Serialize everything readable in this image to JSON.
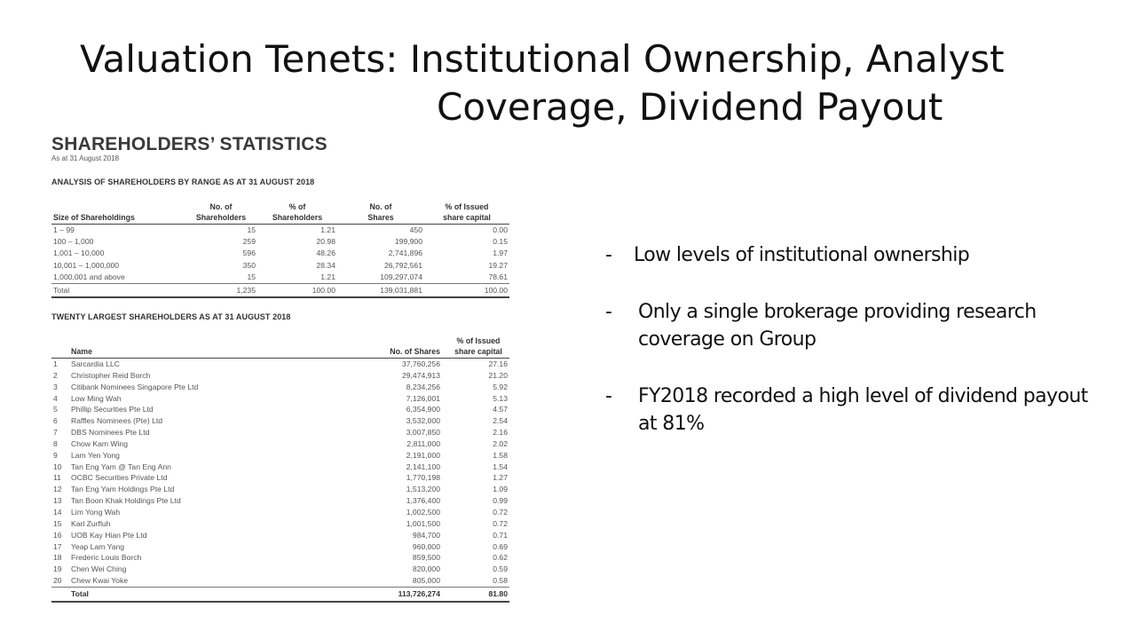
{
  "slide": {
    "title_line1": "Valuation Tenets: Institutional Ownership, Analyst",
    "title_line2": "Coverage, Dividend Payout",
    "bullets": [
      {
        "dash": "-",
        "text": "Low levels of institutional ownership"
      },
      {
        "dash": "-",
        "text": "Only a single brokerage providing research coverage on Group"
      },
      {
        "dash": "-",
        "text": "FY2018 recorded a high level of dividend payout at 81%"
      }
    ]
  },
  "doc": {
    "title": "SHAREHOLDERS’ STATISTICS",
    "subtitle": "As at 31 August 2018",
    "range_section_title": "ANALYSIS OF SHAREHOLDERS BY RANGE AS AT 31 AUGUST 2018",
    "range_headers": {
      "size": "Size of Shareholdings",
      "holders": "No. of Shareholders",
      "pct_holders": "% of Shareholders",
      "shares": "No. of Shares",
      "pct_capital": "% of Issued share capital"
    },
    "range_rows": [
      {
        "size": "1 – 99",
        "holders": "15",
        "pct_holders": "1.21",
        "shares": "450",
        "pct_capital": "0.00"
      },
      {
        "size": "100 – 1,000",
        "holders": "259",
        "pct_holders": "20.98",
        "shares": "199,900",
        "pct_capital": "0.15"
      },
      {
        "size": "1,001 – 10,000",
        "holders": "596",
        "pct_holders": "48.26",
        "shares": "2,741,896",
        "pct_capital": "1.97"
      },
      {
        "size": "10,001 – 1,000,000",
        "holders": "350",
        "pct_holders": "28.34",
        "shares": "26,792,561",
        "pct_capital": "19.27"
      },
      {
        "size": "1,000,001 and above",
        "holders": "15",
        "pct_holders": "1.21",
        "shares": "109,297,074",
        "pct_capital": "78.61"
      }
    ],
    "range_total": {
      "size": "Total",
      "holders": "1,235",
      "pct_holders": "100.00",
      "shares": "139,031,881",
      "pct_capital": "100.00"
    },
    "top20_section_title": "TWENTY LARGEST SHAREHOLDERS AS AT 31 AUGUST 2018",
    "top20_headers": {
      "name": "Name",
      "shares": "No. of Shares",
      "pct_capital": "% of Issued share capital"
    },
    "top20_rows": [
      {
        "no": "1",
        "name": "Sarcardia LLC",
        "shares": "37,760,256",
        "pct": "27.16"
      },
      {
        "no": "2",
        "name": "Christopher Reid Borch",
        "shares": "29,474,913",
        "pct": "21.20"
      },
      {
        "no": "3",
        "name": "Citibank Nominees Singapore Pte Ltd",
        "shares": "8,234,256",
        "pct": "5.92"
      },
      {
        "no": "4",
        "name": "Low Ming Wah",
        "shares": "7,126,001",
        "pct": "5.13"
      },
      {
        "no": "5",
        "name": "Phillip Securities Pte Ltd",
        "shares": "6,354,900",
        "pct": "4.57"
      },
      {
        "no": "6",
        "name": "Raffles Nominees (Pte) Ltd",
        "shares": "3,532,000",
        "pct": "2.54"
      },
      {
        "no": "7",
        "name": "DBS Nominees Pte Ltd",
        "shares": "3,007,850",
        "pct": "2.16"
      },
      {
        "no": "8",
        "name": "Chow Kam Wing",
        "shares": "2,811,000",
        "pct": "2.02"
      },
      {
        "no": "9",
        "name": "Lam Yen Yong",
        "shares": "2,191,000",
        "pct": "1.58"
      },
      {
        "no": "10",
        "name": "Tan Eng Yam @ Tan Eng Ann",
        "shares": "2,141,100",
        "pct": "1.54"
      },
      {
        "no": "11",
        "name": "OCBC Securities Private Ltd",
        "shares": "1,770,198",
        "pct": "1.27"
      },
      {
        "no": "12",
        "name": "Tan Eng Yam Holdings Pte Ltd",
        "shares": "1,513,200",
        "pct": "1.09"
      },
      {
        "no": "13",
        "name": "Tan Boon Khak Holdings Pte Ltd",
        "shares": "1,376,400",
        "pct": "0.99"
      },
      {
        "no": "14",
        "name": "Lim Yong Wah",
        "shares": "1,002,500",
        "pct": "0.72"
      },
      {
        "no": "15",
        "name": "Karl Zurfluh",
        "shares": "1,001,500",
        "pct": "0.72"
      },
      {
        "no": "16",
        "name": "UOB Kay Hian Pte Ltd",
        "shares": "984,700",
        "pct": "0.71"
      },
      {
        "no": "17",
        "name": "Yeap Lam Yang",
        "shares": "960,000",
        "pct": "0.69"
      },
      {
        "no": "18",
        "name": "Frederic Louis Borch",
        "shares": "859,500",
        "pct": "0.62"
      },
      {
        "no": "19",
        "name": "Chen Wei Ching",
        "shares": "820,000",
        "pct": "0.59"
      },
      {
        "no": "20",
        "name": "Chew Kwai Yoke",
        "shares": "805,000",
        "pct": "0.58"
      }
    ],
    "top20_total": {
      "name": "Total",
      "shares": "113,726,274",
      "pct": "81.80"
    }
  }
}
